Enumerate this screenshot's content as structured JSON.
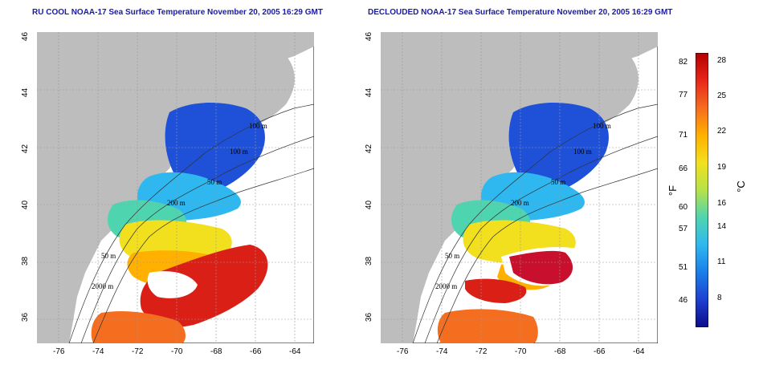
{
  "titles": {
    "left": "RU COOL NOAA-17 Sea Surface Temperature November 20, 2005 16:29 GMT",
    "right": "DECLOUDED NOAA-17 Sea Surface Temperature November 20, 2005 16:29 GMT"
  },
  "axes": {
    "lon_ticks": [
      "-76",
      "-74",
      "-72",
      "-70",
      "-68",
      "-66",
      "-64"
    ],
    "lat_ticks": [
      "46",
      "44",
      "42",
      "40",
      "38",
      "36"
    ]
  },
  "contour_labels": [
    "100 m",
    "100 m",
    "50 m",
    "200 m",
    "50 m",
    "2000 m"
  ],
  "colorbar": {
    "fahrenheit_label": "°F",
    "celsius_label": "°C",
    "fahrenheit_ticks": [
      "82",
      "77",
      "71",
      "66",
      "60",
      "57",
      "51",
      "46"
    ],
    "celsius_ticks": [
      "28",
      "25",
      "22",
      "19",
      "16",
      "14",
      "11",
      "8"
    ],
    "colors": [
      "#b30000",
      "#e8261a",
      "#f56d1f",
      "#ffb000",
      "#f2e01e",
      "#b6e24a",
      "#4fd4b0",
      "#2fb8ef",
      "#1a7ee8",
      "#1e40d0",
      "#0c0c8a"
    ]
  },
  "colors": {
    "land": "#bdbdbd",
    "title": "#1a1aa6"
  }
}
